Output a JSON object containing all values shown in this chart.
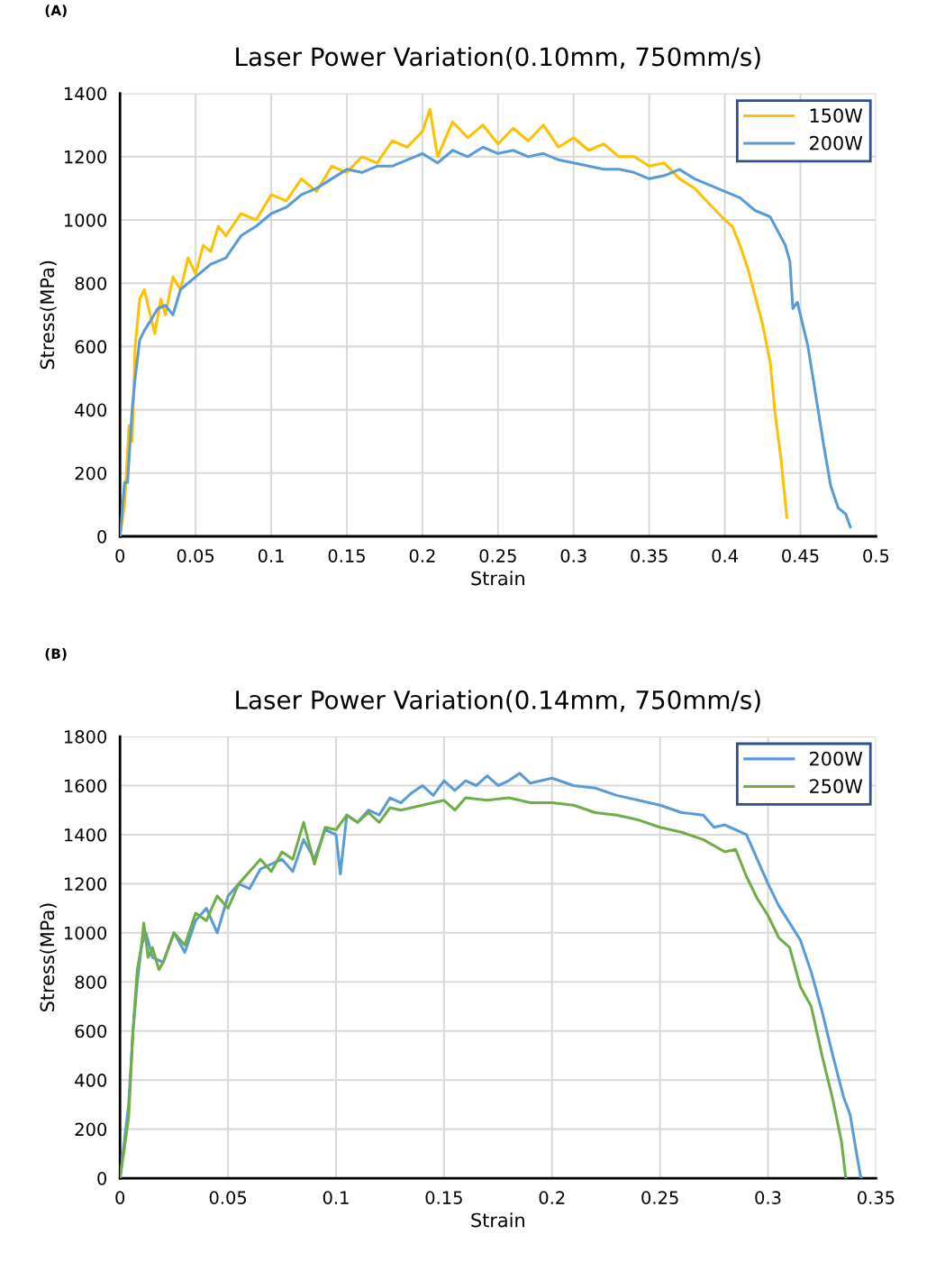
{
  "chart_data": [
    {
      "type": "line",
      "title": "Laser Power Variation(0.10mm, 750mm/s)",
      "xlabel": "Strain",
      "ylabel": "Stress(MPa)",
      "annotations": [
        "(A)"
      ],
      "xlim": [
        0,
        0.5
      ],
      "xticks": [
        0,
        0.05,
        0.1,
        0.15,
        0.2,
        0.25,
        0.3,
        0.35,
        0.4,
        0.45,
        0.5
      ],
      "ylim": [
        0,
        1400
      ],
      "yticks": [
        0,
        200,
        400,
        600,
        800,
        1000,
        1200,
        1400
      ],
      "grid": true,
      "legend": "top right",
      "line_style": "solid",
      "marker": "none",
      "series": [
        {
          "name": "150W",
          "color": "#ffc000",
          "x": [
            0,
            0.003,
            0.006,
            0.008,
            0.01,
            0.013,
            0.016,
            0.02,
            0.023,
            0.027,
            0.03,
            0.035,
            0.04,
            0.045,
            0.05,
            0.055,
            0.06,
            0.065,
            0.07,
            0.08,
            0.09,
            0.1,
            0.11,
            0.12,
            0.13,
            0.14,
            0.15,
            0.16,
            0.17,
            0.18,
            0.19,
            0.2,
            0.205,
            0.21,
            0.22,
            0.23,
            0.24,
            0.25,
            0.26,
            0.27,
            0.28,
            0.29,
            0.3,
            0.31,
            0.32,
            0.33,
            0.34,
            0.35,
            0.36,
            0.37,
            0.38,
            0.39,
            0.4,
            0.405,
            0.41,
            0.415,
            0.42,
            0.425,
            0.43,
            0.433,
            0.437,
            0.441
          ],
          "values": [
            0,
            100,
            350,
            300,
            600,
            750,
            780,
            700,
            640,
            750,
            700,
            820,
            780,
            880,
            830,
            920,
            900,
            980,
            950,
            1020,
            1000,
            1080,
            1060,
            1130,
            1090,
            1170,
            1150,
            1200,
            1180,
            1250,
            1230,
            1280,
            1350,
            1200,
            1310,
            1260,
            1300,
            1240,
            1290,
            1250,
            1300,
            1230,
            1260,
            1220,
            1240,
            1200,
            1200,
            1170,
            1180,
            1130,
            1100,
            1050,
            1000,
            980,
            920,
            850,
            760,
            670,
            550,
            400,
            250,
            60
          ]
        },
        {
          "name": "200W",
          "color": "#5b9bd5",
          "x": [
            0,
            0.003,
            0.005,
            0.008,
            0.01,
            0.013,
            0.016,
            0.02,
            0.025,
            0.03,
            0.035,
            0.04,
            0.05,
            0.06,
            0.07,
            0.08,
            0.09,
            0.1,
            0.11,
            0.12,
            0.13,
            0.14,
            0.15,
            0.16,
            0.17,
            0.18,
            0.19,
            0.2,
            0.21,
            0.22,
            0.23,
            0.24,
            0.25,
            0.26,
            0.27,
            0.28,
            0.29,
            0.3,
            0.31,
            0.32,
            0.33,
            0.34,
            0.35,
            0.36,
            0.37,
            0.38,
            0.39,
            0.4,
            0.41,
            0.42,
            0.43,
            0.44,
            0.443,
            0.445,
            0.448,
            0.45,
            0.455,
            0.46,
            0.465,
            0.47,
            0.475,
            0.48,
            0.483
          ],
          "values": [
            0,
            170,
            170,
            400,
            500,
            620,
            650,
            680,
            720,
            730,
            700,
            780,
            820,
            860,
            880,
            950,
            980,
            1020,
            1040,
            1080,
            1100,
            1130,
            1160,
            1150,
            1170,
            1170,
            1190,
            1210,
            1180,
            1220,
            1200,
            1230,
            1210,
            1220,
            1200,
            1210,
            1190,
            1180,
            1170,
            1160,
            1160,
            1150,
            1130,
            1140,
            1160,
            1130,
            1110,
            1090,
            1070,
            1030,
            1010,
            920,
            870,
            720,
            740,
            700,
            600,
            450,
            300,
            160,
            90,
            70,
            30
          ]
        }
      ]
    },
    {
      "type": "line",
      "title": "Laser Power Variation(0.14mm, 750mm/s)",
      "xlabel": "Strain",
      "ylabel": "Stress(MPa)",
      "annotations": [
        "(B)"
      ],
      "xlim": [
        0,
        0.35
      ],
      "xticks": [
        0,
        0.05,
        0.1,
        0.15,
        0.2,
        0.25,
        0.3,
        0.35
      ],
      "ylim": [
        0,
        1800
      ],
      "yticks": [
        0,
        200,
        400,
        600,
        800,
        1000,
        1200,
        1400,
        1600,
        1800
      ],
      "grid": true,
      "legend": "top right",
      "line_style": "solid",
      "marker": "none",
      "series": [
        {
          "name": "200W",
          "color": "#5b9bd5",
          "x": [
            0,
            0.002,
            0.004,
            0.006,
            0.008,
            0.01,
            0.012,
            0.015,
            0.02,
            0.025,
            0.03,
            0.035,
            0.04,
            0.045,
            0.05,
            0.055,
            0.06,
            0.065,
            0.07,
            0.075,
            0.08,
            0.085,
            0.09,
            0.095,
            0.1,
            0.102,
            0.105,
            0.11,
            0.115,
            0.12,
            0.125,
            0.13,
            0.135,
            0.14,
            0.145,
            0.15,
            0.155,
            0.16,
            0.165,
            0.17,
            0.175,
            0.18,
            0.185,
            0.19,
            0.2,
            0.21,
            0.22,
            0.23,
            0.24,
            0.25,
            0.26,
            0.27,
            0.275,
            0.28,
            0.285,
            0.29,
            0.295,
            0.3,
            0.305,
            0.31,
            0.315,
            0.32,
            0.325,
            0.33,
            0.335,
            0.338,
            0.341,
            0.343
          ],
          "values": [
            0,
            150,
            300,
            600,
            800,
            950,
            1000,
            900,
            880,
            1000,
            920,
            1050,
            1100,
            1000,
            1150,
            1200,
            1180,
            1260,
            1280,
            1300,
            1250,
            1380,
            1300,
            1420,
            1400,
            1240,
            1480,
            1450,
            1500,
            1480,
            1550,
            1530,
            1570,
            1600,
            1560,
            1620,
            1580,
            1620,
            1600,
            1640,
            1600,
            1620,
            1650,
            1610,
            1630,
            1600,
            1590,
            1560,
            1540,
            1520,
            1490,
            1480,
            1430,
            1440,
            1420,
            1400,
            1300,
            1200,
            1110,
            1040,
            970,
            840,
            680,
            500,
            330,
            260,
            100,
            0
          ]
        },
        {
          "name": "250W",
          "color": "#70ad47",
          "x": [
            0,
            0.002,
            0.004,
            0.006,
            0.008,
            0.01,
            0.011,
            0.013,
            0.015,
            0.018,
            0.02,
            0.025,
            0.03,
            0.035,
            0.04,
            0.045,
            0.05,
            0.055,
            0.06,
            0.065,
            0.07,
            0.075,
            0.08,
            0.085,
            0.09,
            0.095,
            0.1,
            0.105,
            0.11,
            0.115,
            0.12,
            0.125,
            0.13,
            0.14,
            0.15,
            0.155,
            0.16,
            0.17,
            0.18,
            0.19,
            0.2,
            0.21,
            0.22,
            0.23,
            0.24,
            0.25,
            0.26,
            0.27,
            0.28,
            0.285,
            0.29,
            0.295,
            0.3,
            0.305,
            0.31,
            0.315,
            0.32,
            0.325,
            0.33,
            0.334,
            0.336
          ],
          "values": [
            0,
            120,
            250,
            600,
            850,
            950,
            1040,
            900,
            940,
            850,
            880,
            1000,
            950,
            1080,
            1050,
            1150,
            1100,
            1200,
            1250,
            1300,
            1250,
            1330,
            1300,
            1450,
            1280,
            1430,
            1420,
            1480,
            1450,
            1490,
            1450,
            1510,
            1500,
            1520,
            1540,
            1500,
            1550,
            1540,
            1550,
            1530,
            1530,
            1520,
            1490,
            1480,
            1460,
            1430,
            1410,
            1380,
            1330,
            1340,
            1230,
            1140,
            1070,
            980,
            940,
            780,
            700,
            500,
            320,
            150,
            0
          ]
        }
      ]
    }
  ]
}
